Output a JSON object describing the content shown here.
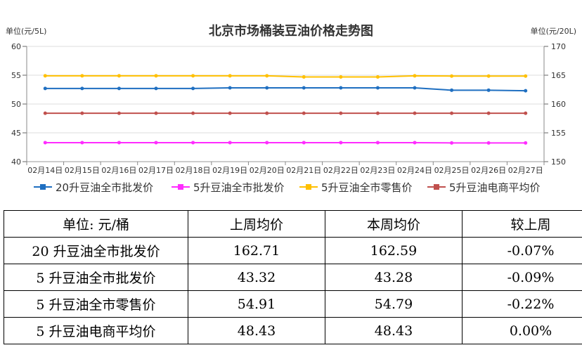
{
  "chart_data": {
    "type": "line",
    "title": "北京市场桶装豆油价格走势图",
    "y_left_unit": "单位(元/5L)",
    "y_right_unit": "单位(元/20L)",
    "categories": [
      "02月14日",
      "02月15日",
      "02月16日",
      "02月17日",
      "02月18日",
      "02月19日",
      "02月20日",
      "02月21日",
      "02月22日",
      "02月23日",
      "02月24日",
      "02月25日",
      "02月26日",
      "02月27日"
    ],
    "y_left": {
      "min": 40,
      "max": 60,
      "ticks": [
        40,
        45,
        50,
        55,
        60
      ]
    },
    "y_right": {
      "min": 150,
      "max": 170,
      "ticks": [
        150,
        155,
        160,
        165,
        170
      ]
    },
    "grid": true,
    "legend_position": "bottom",
    "series": [
      {
        "name": "20升豆油全市批发价",
        "axis": "right",
        "color": "#1f6fc1",
        "values": [
          162.7,
          162.7,
          162.7,
          162.7,
          162.7,
          162.8,
          162.8,
          162.8,
          162.8,
          162.8,
          162.8,
          162.4,
          162.4,
          162.3
        ]
      },
      {
        "name": "5升豆油全市批发价",
        "axis": "left",
        "color": "#ff2cff",
        "values": [
          43.3,
          43.3,
          43.3,
          43.3,
          43.3,
          43.3,
          43.3,
          43.3,
          43.3,
          43.3,
          43.3,
          43.25,
          43.25,
          43.25
        ]
      },
      {
        "name": "5升豆油全市零售价",
        "axis": "left",
        "color": "#ffc000",
        "values": [
          54.9,
          54.9,
          54.9,
          54.9,
          54.9,
          54.9,
          54.9,
          54.7,
          54.7,
          54.7,
          54.9,
          54.85,
          54.85,
          54.85
        ]
      },
      {
        "name": "5升豆油电商平均价",
        "axis": "left",
        "color": "#c0504d",
        "values": [
          48.4,
          48.4,
          48.4,
          48.4,
          48.4,
          48.4,
          48.4,
          48.4,
          48.4,
          48.4,
          48.4,
          48.4,
          48.4,
          48.4
        ]
      }
    ]
  },
  "table": {
    "headers": [
      "单位: 元/桶",
      "上周均价",
      "本周均价",
      "较上周"
    ],
    "rows": [
      [
        "20 升豆油全市批发价",
        "162.71",
        "162.59",
        "-0.07%"
      ],
      [
        "5 升豆油全市批发价",
        "43.32",
        "43.28",
        "-0.09%"
      ],
      [
        "5 升豆油全市零售价",
        "54.91",
        "54.79",
        "-0.22%"
      ],
      [
        "5 升豆油电商平均价",
        "48.43",
        "48.43",
        "0.00%"
      ]
    ]
  }
}
